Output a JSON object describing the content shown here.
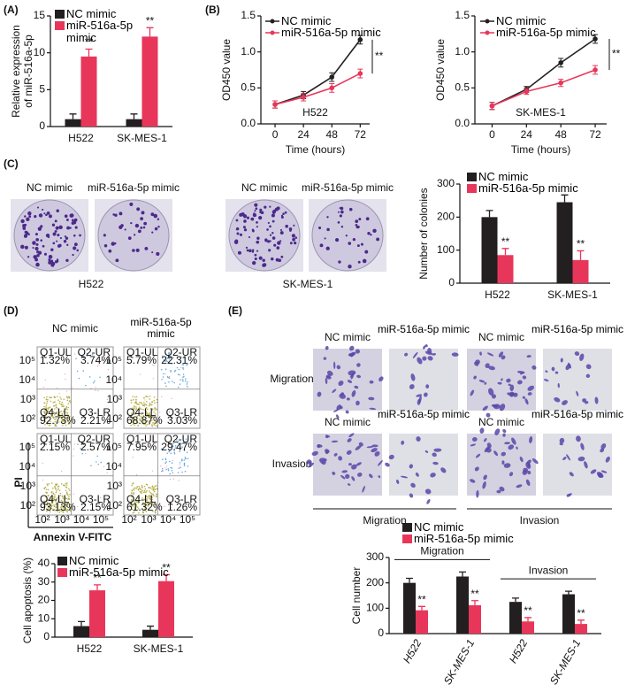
{
  "panel_labels": [
    "(A)",
    "(B)",
    "(C)",
    "(D)",
    "(E)"
  ],
  "colony_images": {
    "headings": [
      "NC mimic",
      "miR-516a-5p mimic"
    ],
    "cell_lines": [
      "H522",
      "SK-MES-1"
    ]
  },
  "flow_cytometry": {
    "headings": [
      "NC mimic",
      "miR-516a-5p mimic"
    ],
    "y_label": "PI",
    "x_label": "Annexin V-FITC",
    "axis_ticks": [
      "10²",
      "10³",
      "10⁴",
      "10⁵"
    ],
    "quadrants": [
      "Q1-UL",
      "Q2-UR",
      "Q3-LR",
      "Q4-LL"
    ],
    "plots": [
      {
        "percent": [
          "1.32%",
          "3.74%",
          "2.21%",
          "92.73%"
        ]
      },
      {
        "percent": [
          "5.79%",
          "22.31%",
          "3.03%",
          "68.87%"
        ]
      },
      {
        "percent": [
          "2.15%",
          "2.57%",
          "2.15%",
          "93.13%"
        ]
      },
      {
        "percent": [
          "7.95%",
          "29.47%",
          "1.26%",
          "61.32%"
        ]
      }
    ]
  },
  "transwell_images": {
    "headings": [
      "NC mimic",
      "miR-516a-5p mimic"
    ],
    "rows": [
      "Migration",
      "Invasion"
    ],
    "groups": [
      "Migration",
      "Invasion"
    ]
  },
  "chart_data": [
    {
      "type": "bar",
      "y_label": [
        "Relative expression",
        "of miR-516a-5p"
      ],
      "categories": [
        "H522",
        "SK-MES-1"
      ],
      "ylim": [
        0,
        15
      ],
      "yticks": [
        0,
        5,
        10,
        15
      ],
      "series": [
        {
          "name": "NC mimic",
          "color": "#231f20",
          "values": [
            1,
            1
          ],
          "errors": [
            0.7,
            0.7
          ]
        },
        {
          "name": "miR-516a-5p mimic",
          "color": "#e8365a",
          "values": [
            9.5,
            12.2
          ],
          "errors": [
            1,
            1.2
          ],
          "annotations": [
            "**",
            "**"
          ]
        }
      ]
    },
    {
      "type": "line",
      "subtitle": "H522",
      "x_label": "Time (hours)",
      "y_label": "OD450 value",
      "x": [
        0,
        24,
        48,
        72
      ],
      "xlim": [
        -12,
        80
      ],
      "xticks": [
        0,
        24,
        48,
        72
      ],
      "ylim": [
        0,
        1.5
      ],
      "yticks": [
        {
          "value": 0,
          "label": "0.0"
        },
        0.5,
        {
          "value": 1,
          "label": "1.0"
        },
        1.5
      ],
      "annotation": "**",
      "series": [
        {
          "name": "NC mimic",
          "color": "#231f20",
          "values": [
            0.27,
            0.4,
            0.65,
            1.17
          ],
          "errors": [
            0.05,
            0.05,
            0.06,
            0.06
          ]
        },
        {
          "name": "miR-516a-5p mimic",
          "color": "#e8365a",
          "values": [
            0.27,
            0.37,
            0.5,
            0.7
          ],
          "errors": [
            0.05,
            0.05,
            0.06,
            0.06
          ]
        }
      ]
    },
    {
      "type": "line",
      "subtitle": "SK-MES-1",
      "x_label": "Time (hours)",
      "y_label": "OD450 value",
      "x": [
        0,
        24,
        48,
        72
      ],
      "xlim": [
        -12,
        80
      ],
      "xticks": [
        0,
        24,
        48,
        72
      ],
      "ylim": [
        0,
        1.5
      ],
      "yticks": [
        {
          "value": 0,
          "label": "0.0"
        },
        0.5,
        {
          "value": 1,
          "label": "1.0"
        },
        1.5
      ],
      "annotation": "**",
      "series": [
        {
          "name": "NC mimic",
          "color": "#231f20",
          "values": [
            0.25,
            0.48,
            0.85,
            1.18
          ],
          "errors": [
            0.05,
            0.04,
            0.06,
            0.06
          ]
        },
        {
          "name": "miR-516a-5p mimic",
          "color": "#e8365a",
          "values": [
            0.25,
            0.45,
            0.57,
            0.75
          ],
          "errors": [
            0.05,
            0.04,
            0.05,
            0.06
          ]
        }
      ]
    },
    {
      "type": "bar",
      "y_label": "Number of colonies",
      "categories": [
        "H522",
        "SK-MES-1"
      ],
      "ylim": [
        0,
        300
      ],
      "yticks": [
        0,
        100,
        200,
        300
      ],
      "series": [
        {
          "name": "NC mimic",
          "color": "#231f20",
          "values": [
            200,
            245
          ],
          "errors": [
            20,
            22
          ]
        },
        {
          "name": "miR-516a-5p mimic",
          "color": "#e8365a",
          "values": [
            85,
            70
          ],
          "errors": [
            20,
            28
          ],
          "annotations": [
            "**",
            "**"
          ]
        }
      ]
    },
    {
      "type": "bar",
      "y_label": "Cell apoptosis (%)",
      "categories": [
        "H522",
        "SK-MES-1"
      ],
      "ylim": [
        0,
        40
      ],
      "yticks": [
        0,
        10,
        20,
        30,
        40
      ],
      "series": [
        {
          "name": "NC mimic",
          "color": "#231f20",
          "values": [
            6,
            4
          ],
          "errors": [
            2.5,
            2
          ]
        },
        {
          "name": "miR-516a-5p mimic",
          "color": "#e8365a",
          "values": [
            25.5,
            30.5
          ],
          "errors": [
            3,
            3.5
          ],
          "annotations": [
            "**",
            "**"
          ]
        }
      ]
    },
    {
      "type": "bar",
      "y_label": "Cell number",
      "categories": [
        "H522",
        "SK-MES-1",
        "H522",
        "SK-MES-1"
      ],
      "group_labels": [
        "Migration",
        "Invasion"
      ],
      "ylim": [
        0,
        300
      ],
      "yticks": [
        0,
        100,
        200,
        300
      ],
      "series": [
        {
          "name": "NC mimic",
          "color": "#231f20",
          "values": [
            200,
            225,
            125,
            155
          ],
          "errors": [
            18,
            18,
            15,
            12
          ]
        },
        {
          "name": "miR-516a-5p mimic",
          "color": "#e8365a",
          "values": [
            92,
            112,
            48,
            38
          ],
          "errors": [
            15,
            18,
            15,
            15
          ],
          "annotations": [
            "**",
            "**",
            "**",
            "**"
          ]
        }
      ]
    }
  ]
}
